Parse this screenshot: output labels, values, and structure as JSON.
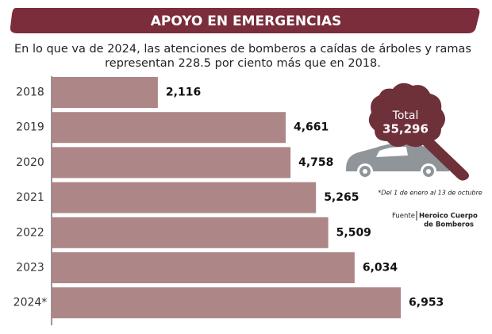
{
  "chart_data": {
    "type": "bar",
    "orientation": "horizontal",
    "title": "APOYO EN EMERGENCIAS",
    "subtitle": [
      "En lo que va de 2024, las atenciones de bomberos a caídas de árboles y ramas",
      "representan  228.5 por ciento más que en 2018."
    ],
    "categories": [
      "2018",
      "2019",
      "2020",
      "2021",
      "2022",
      "2023",
      "2024*"
    ],
    "values": [
      2116,
      4661,
      4758,
      5265,
      5509,
      6034,
      6953
    ],
    "value_labels": [
      "2,116",
      "4,661",
      "4,758",
      "5,265",
      "5,509",
      "6,034",
      "6,953"
    ],
    "color": "#ad8787",
    "xlim": [
      0,
      7000
    ],
    "annotations": [
      "Total",
      "35,296",
      "*Del 1 de enero al 13 de octubre"
    ],
    "source": {
      "label": "Fuente",
      "text": [
        "Heroico Cuerpo",
        "de Bomberos"
      ]
    }
  }
}
